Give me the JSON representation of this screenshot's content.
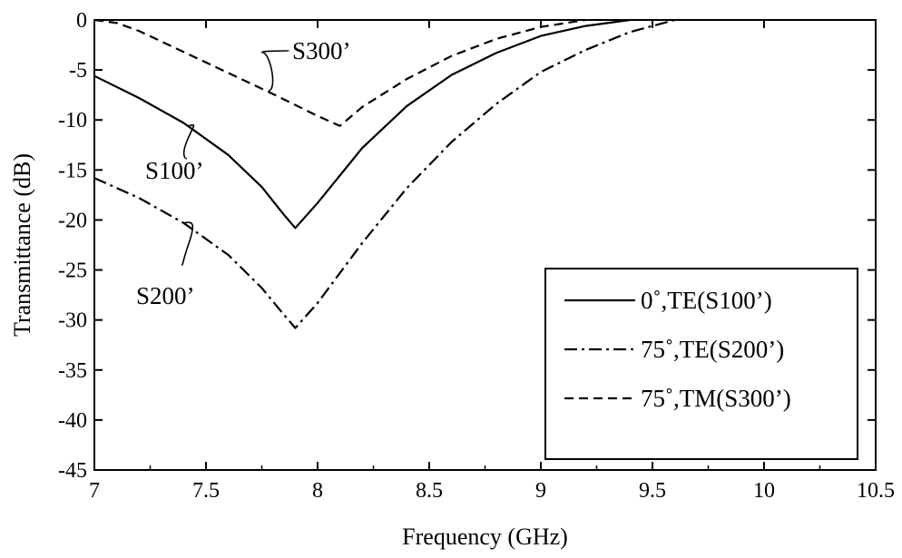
{
  "chart_data": {
    "type": "line",
    "title": "",
    "xlabel": "Frequency (GHz)",
    "ylabel": "Transmittance (dB)",
    "xlim": [
      7,
      10.5
    ],
    "ylim": [
      -45,
      0
    ],
    "xticks": [
      7,
      7.5,
      8,
      8.5,
      9,
      9.5,
      10,
      10.5
    ],
    "xtick_labels": [
      "7",
      "7.5",
      "8",
      "8.5",
      "9",
      "9.5",
      "10",
      "10.5"
    ],
    "yticks": [
      0,
      -5,
      -10,
      -15,
      -20,
      -25,
      -30,
      -35,
      -40,
      -45
    ],
    "ytick_labels": [
      "0",
      "-5",
      "-10",
      "-15",
      "-20",
      "-25",
      "-30",
      "-35",
      "-40",
      "-45"
    ],
    "grid": false,
    "legend_position": "bottom-right",
    "series": [
      {
        "name": "0˚,TE(S100’)",
        "style": "solid",
        "color": "#000000",
        "x": [
          7.0,
          7.2,
          7.4,
          7.6,
          7.75,
          7.85,
          7.9,
          8.0,
          8.2,
          8.4,
          8.6,
          8.8,
          9.0,
          9.2,
          9.4
        ],
        "y": [
          -5.6,
          -7.8,
          -10.3,
          -13.5,
          -16.7,
          -19.5,
          -20.8,
          -18.3,
          -12.8,
          -8.6,
          -5.5,
          -3.3,
          -1.6,
          -0.6,
          0
        ]
      },
      {
        "name": "75˚,TE(S200’)",
        "style": "dashdot",
        "color": "#000000",
        "x": [
          7.0,
          7.2,
          7.4,
          7.6,
          7.75,
          7.85,
          7.9,
          8.0,
          8.2,
          8.4,
          8.6,
          8.8,
          9.0,
          9.2,
          9.4,
          9.6
        ],
        "y": [
          -15.8,
          -17.8,
          -20.3,
          -23.5,
          -26.8,
          -29.5,
          -30.8,
          -28.3,
          -22.3,
          -16.8,
          -12.2,
          -8.4,
          -5.2,
          -3.0,
          -1.2,
          0
        ]
      },
      {
        "name": "75˚,TM(S300’)",
        "style": "dashed",
        "color": "#000000",
        "x": [
          7.0,
          7.1,
          7.2,
          7.4,
          7.6,
          7.8,
          8.0,
          8.1,
          8.2,
          8.4,
          8.6,
          8.8,
          9.0,
          9.2
        ],
        "y": [
          0,
          -0.3,
          -1.1,
          -3.2,
          -5.3,
          -7.4,
          -9.6,
          -10.6,
          -8.7,
          -5.9,
          -3.6,
          -1.9,
          -0.7,
          0
        ]
      }
    ],
    "annotations": [
      {
        "text": "S300’",
        "series": 2,
        "x": 7.78,
        "y": -7.1
      },
      {
        "text": "S100’",
        "series": 0,
        "x": 7.42,
        "y": -10.6
      },
      {
        "text": "S200’",
        "series": 1,
        "x": 7.4,
        "y": -20.3
      }
    ]
  }
}
